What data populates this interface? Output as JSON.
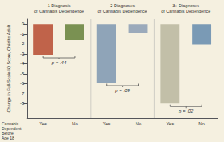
{
  "chart_data": {
    "type": "bar",
    "ylabel": "Change in Full-Scale IQ Score, Child to Adult",
    "xlabel": "Cannabis\nDependent\nBefore\nAge 18",
    "categories": [
      "Yes",
      "No",
      "Yes",
      "No",
      "Yes",
      "No"
    ],
    "values": [
      -3.1,
      -1.6,
      -5.9,
      -0.9,
      -8.0,
      -2.1
    ],
    "colors": [
      "#c0634a",
      "#7a9152",
      "#8fa4b8",
      "#9baabb",
      "#c2bfa8",
      "#7a9ab5"
    ],
    "groups": [
      {
        "title": "1 Diagnosis\nof Cannabis Dependence",
        "p_value": "p = .44"
      },
      {
        "title": "2 Diagnoses\nof Cannabis Dependence",
        "p_value": "p = .09"
      },
      {
        "title": "3+ Diagnoses\nof Cannabis Dependence",
        "p_value": "p = .02"
      }
    ],
    "ylim": [
      -9.5,
      0.5
    ],
    "yticks": [
      0,
      -1,
      -2,
      -3,
      -4,
      -5,
      -6,
      -7,
      -8
    ],
    "grid": false,
    "background_color": "#f5f0e0"
  }
}
